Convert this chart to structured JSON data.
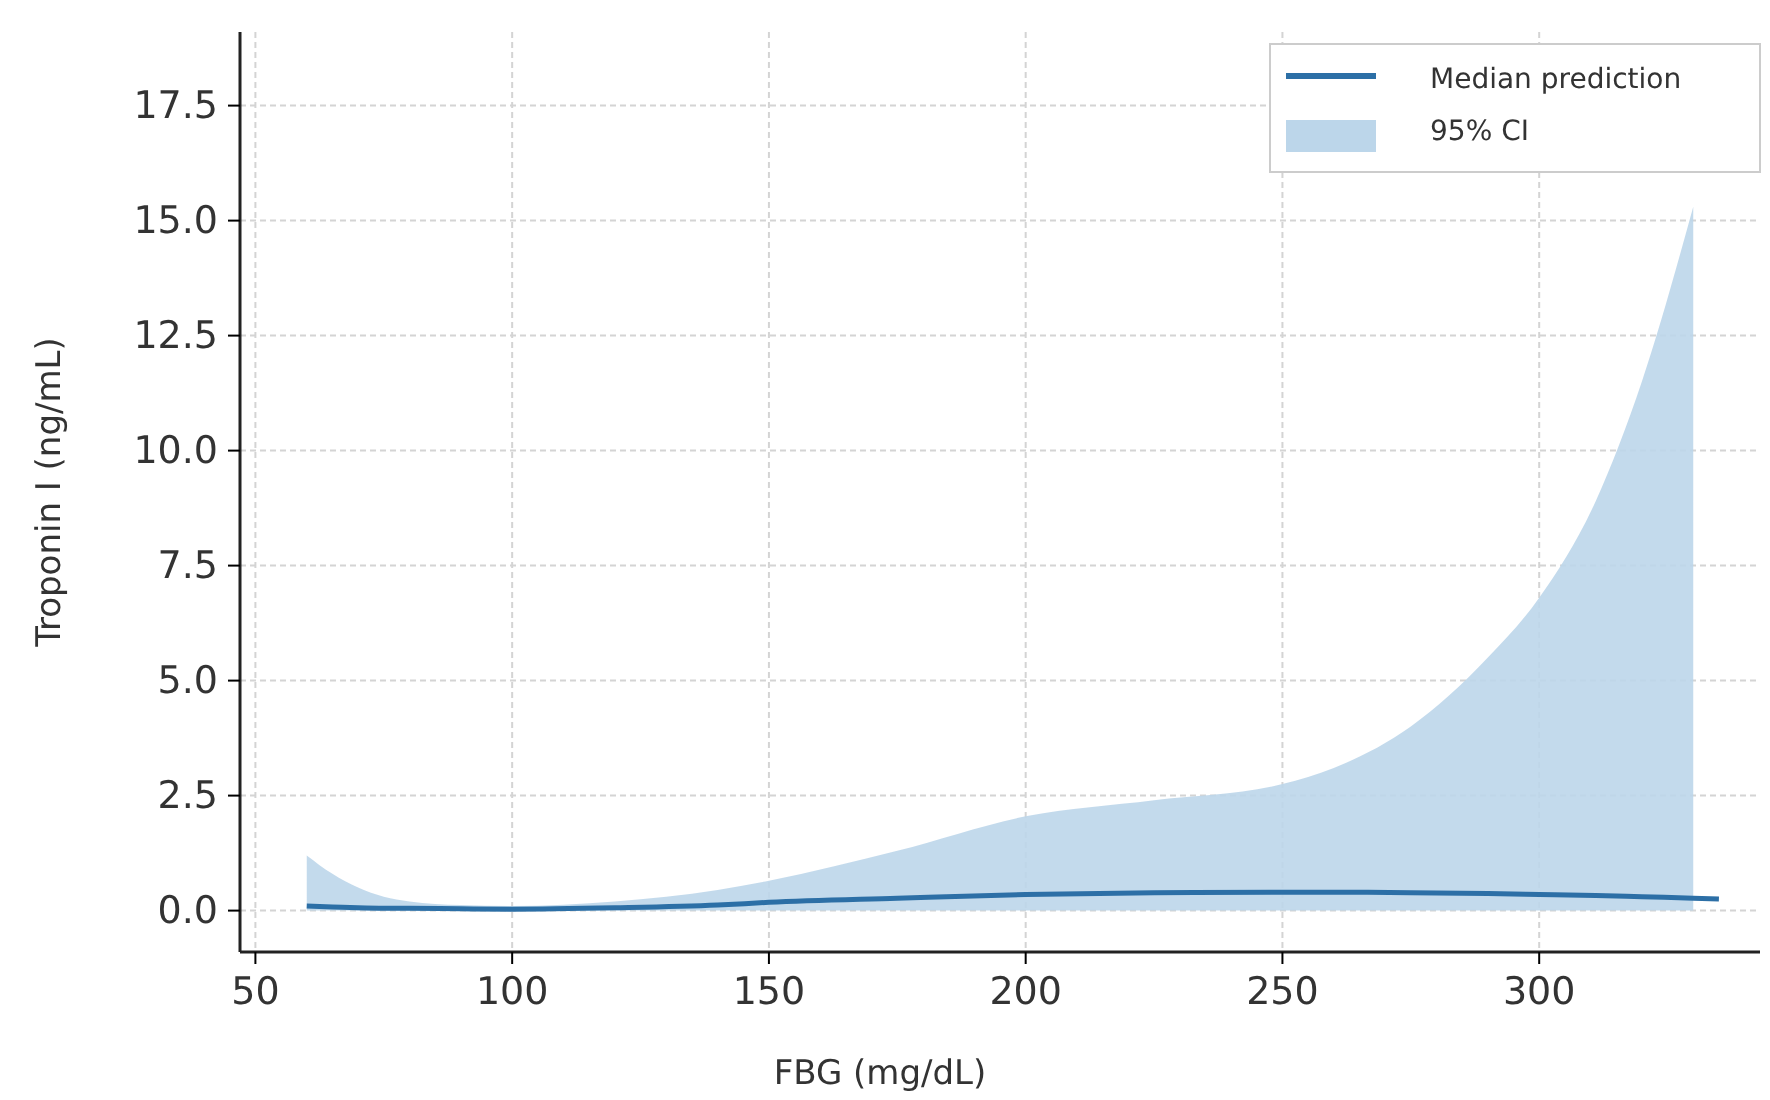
{
  "chart_data": {
    "type": "line",
    "xlabel": "FBG (mg/dL)",
    "ylabel": "Troponin I (ng/mL)",
    "x": [
      60,
      65,
      70,
      75,
      80,
      90,
      100,
      120,
      140,
      150,
      175,
      200,
      225,
      250,
      260,
      275,
      290,
      300,
      311,
      320,
      330,
      335
    ],
    "xlim": [
      47,
      343
    ],
    "xticks": [
      50,
      100,
      150,
      200,
      250,
      300
    ],
    "ylim": [
      -0.9,
      19.1
    ],
    "yticks": [
      {
        "value": 0,
        "label": "0.0"
      },
      {
        "value": 2.5,
        "label": "2.5"
      },
      {
        "value": 5,
        "label": "5.0"
      },
      {
        "value": 7.5,
        "label": "7.5"
      },
      {
        "value": 10,
        "label": "10.0"
      },
      {
        "value": 12.5,
        "label": "12.5"
      },
      {
        "value": 15,
        "label": "15.0"
      },
      {
        "value": 17.5,
        "label": "17.5"
      }
    ],
    "grid": true,
    "legend": "top right",
    "series": [
      {
        "name": "95% CI",
        "type": "area",
        "color": "#bcd6ea",
        "values": [
          1.2,
          0.8,
          0.5,
          0.3,
          0.2,
          0.12,
          0.1,
          0.2,
          0.45,
          0.65,
          1.3,
          2.05,
          2.4,
          2.75,
          3.1,
          4.0,
          5.5,
          6.8,
          8.9,
          11.5,
          15.3,
          null
        ]
      },
      {
        "name": "Median prediction",
        "color": "#2c6fa6",
        "values": [
          0.1,
          0.08,
          0.06,
          0.05,
          0.05,
          0.04,
          0.03,
          0.06,
          0.12,
          0.18,
          0.27,
          0.35,
          0.39,
          0.4,
          0.4,
          0.39,
          0.37,
          0.35,
          0.33,
          0.3,
          0.27,
          0.25
        ]
      }
    ]
  }
}
